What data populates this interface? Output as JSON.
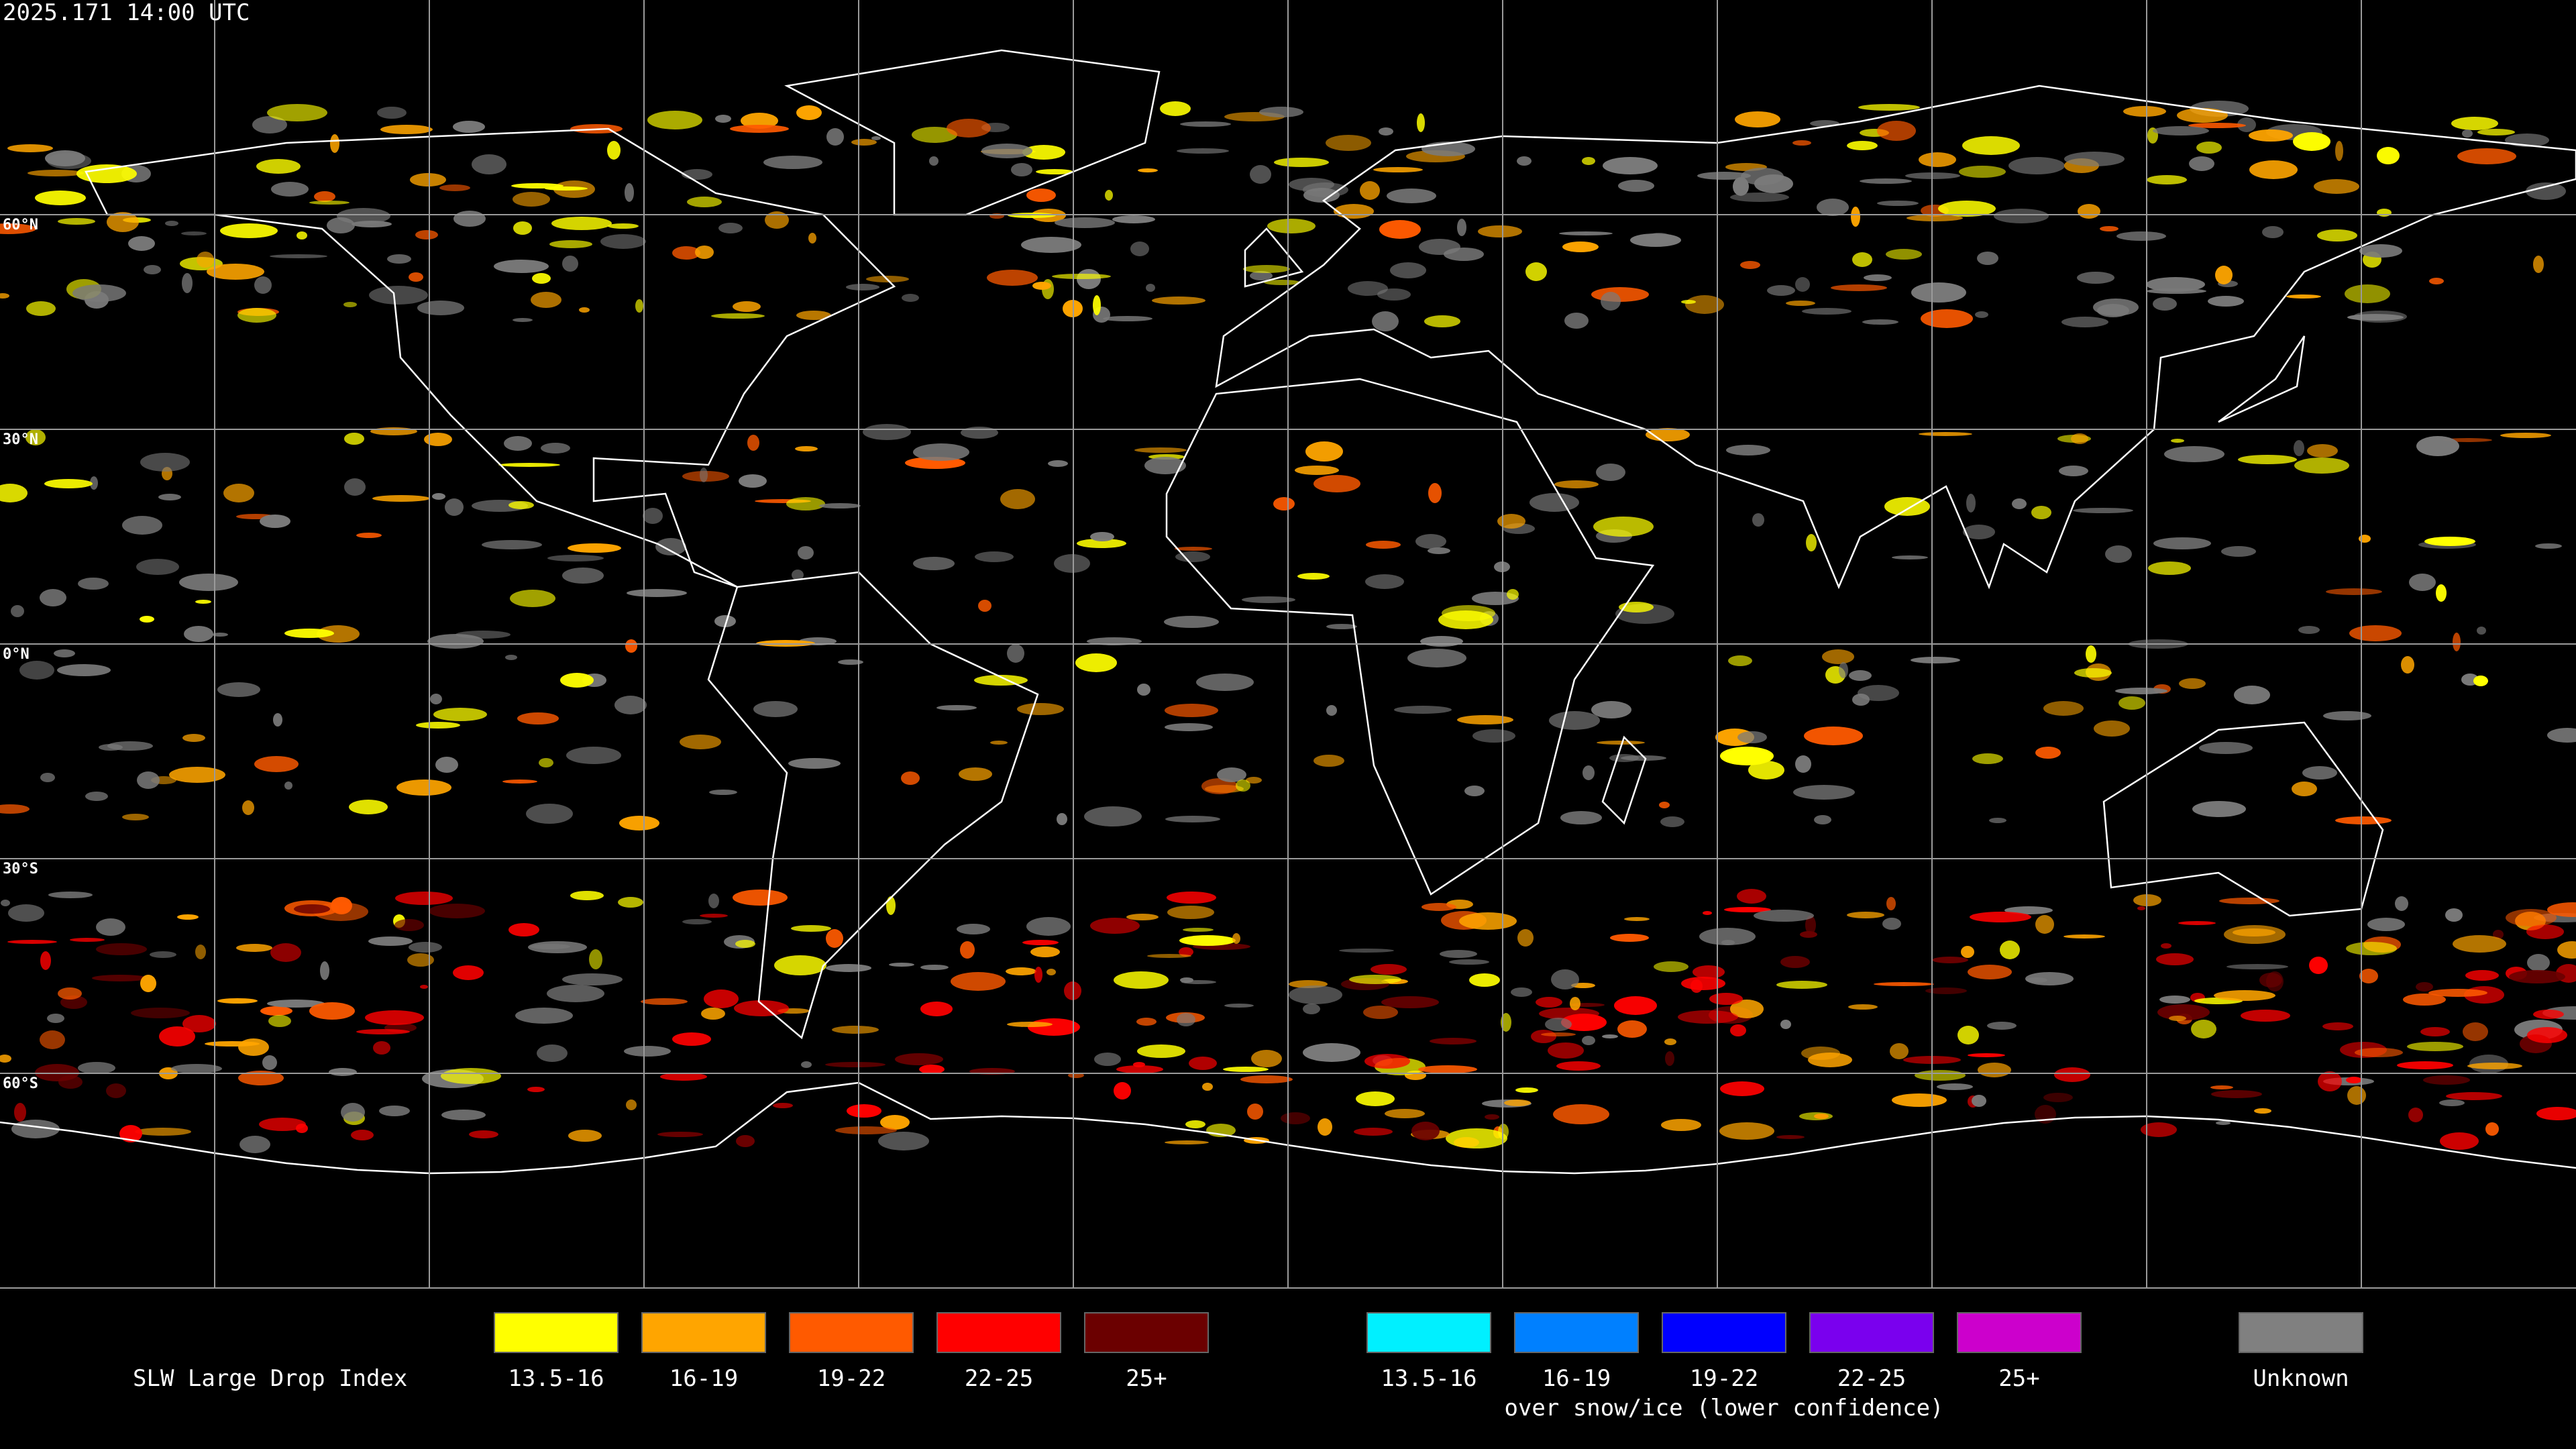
{
  "timestamp": "2025.171 14:00 UTC",
  "map": {
    "latitude_labels": [
      "60°N",
      "30°N",
      "0°N",
      "30°S",
      "60°S"
    ]
  },
  "legend": {
    "title": "SLW Large Drop Index",
    "liquid": [
      {
        "label": "13.5-16",
        "color": "#ffff00"
      },
      {
        "label": "16-19",
        "color": "#ffa500"
      },
      {
        "label": "19-22",
        "color": "#ff5a00"
      },
      {
        "label": "22-25",
        "color": "#ff0000"
      },
      {
        "label": "25+",
        "color": "#6b0000"
      }
    ],
    "snow_ice": [
      {
        "label": "13.5-16",
        "color": "#00f0ff"
      },
      {
        "label": "16-19",
        "color": "#0080ff"
      },
      {
        "label": "19-22",
        "color": "#0000ff"
      },
      {
        "label": "22-25",
        "color": "#7a00ee"
      },
      {
        "label": "25+",
        "color": "#cc00cc"
      }
    ],
    "snow_ice_note": "over snow/ice (lower confidence)",
    "unknown": {
      "label": "Unknown",
      "color": "#808080"
    }
  }
}
